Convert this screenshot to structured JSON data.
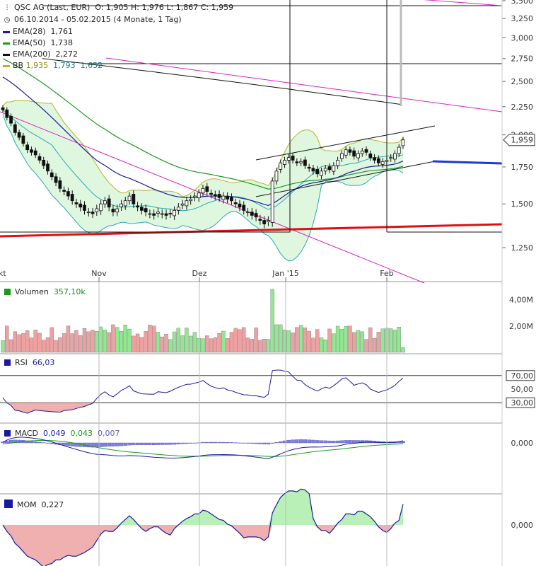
{
  "header": {
    "title": "QSC AG (Last, EUR)",
    "ohlc": "O: 1,905  H: 1,976  L: 1,867  C: 1,959",
    "period": "06.10.2014 - 05.02.2015 (4 Monate, 1 Tag)",
    "current_price": "1,959"
  },
  "legend": [
    {
      "label": "EMA(28)",
      "value": "1,761",
      "color": "#1a1aa0"
    },
    {
      "label": "EMA(50)",
      "value": "1,738",
      "color": "#1a9a1a"
    },
    {
      "label": "EMA(200)",
      "value": "2,272",
      "color": "#111111"
    },
    {
      "label": "BB",
      "value": "1,935",
      "value2": "1,793",
      "value3": "1,652",
      "color": "#b5b52a",
      "color2": "#2aa8b5"
    }
  ],
  "x_labels": [
    "kt",
    "Nov",
    "Dez",
    "Jan '15",
    "Feb"
  ],
  "price_ticks": [
    "3,500",
    "3,250",
    "3,000",
    "2,750",
    "2,500",
    "2,250",
    "2,000",
    "1,750",
    "1,500",
    "1,250"
  ],
  "volume": {
    "label": "Volumen",
    "value": "357,10k",
    "ticks": [
      "4,00M",
      "2,00M"
    ]
  },
  "rsi": {
    "label": "RSI",
    "value": "66,03",
    "ticks": [
      "70,00",
      "50,00",
      "30,00"
    ]
  },
  "macd": {
    "label": "MACD",
    "value": "0,049",
    "value2": "0,043",
    "value3": "0,007",
    "tick": "0,000"
  },
  "mom": {
    "label": "MOM",
    "value": "0,227",
    "tick": "0,000"
  },
  "colors": {
    "up": "#ffffff",
    "down": "#111111",
    "bb_fill": "#dff7df",
    "ema200_sup": "#dd1111",
    "trend": "#e020c0",
    "vol_up": "#90e890",
    "vol_down": "#f0a0a0",
    "macd_hist": "#8080e0",
    "mom_pos": "#b8f0b8",
    "mom_neg": "#f0b0b0",
    "target": "#1a3ad0"
  },
  "chart_data": [
    {
      "type": "candlestick",
      "title": "QSC AG (Last, EUR)",
      "x_range": [
        "2014-10-06",
        "2015-02-05"
      ],
      "ylim": [
        1.15,
        3.55
      ],
      "y_scale": "log",
      "close_series": [
        2.22,
        2.15,
        2.1,
        2.02,
        1.98,
        1.93,
        1.88,
        1.86,
        1.84,
        1.8,
        1.76,
        1.72,
        1.68,
        1.64,
        1.6,
        1.58,
        1.55,
        1.52,
        1.5,
        1.48,
        1.46,
        1.45,
        1.44,
        1.47,
        1.5,
        1.52,
        1.48,
        1.45,
        1.47,
        1.5,
        1.52,
        1.55,
        1.5,
        1.48,
        1.46,
        1.45,
        1.44,
        1.43,
        1.45,
        1.44,
        1.43,
        1.44,
        1.46,
        1.48,
        1.5,
        1.52,
        1.53,
        1.55,
        1.57,
        1.6,
        1.58,
        1.56,
        1.55,
        1.54,
        1.55,
        1.53,
        1.52,
        1.5,
        1.48,
        1.46,
        1.45,
        1.43,
        1.42,
        1.4,
        1.38,
        1.4,
        1.65,
        1.72,
        1.78,
        1.8,
        1.82,
        1.8,
        1.78,
        1.79,
        1.76,
        1.74,
        1.72,
        1.7,
        1.72,
        1.74,
        1.73,
        1.76,
        1.8,
        1.85,
        1.88,
        1.86,
        1.83,
        1.85,
        1.87,
        1.86,
        1.82,
        1.8,
        1.78,
        1.79,
        1.8,
        1.82,
        1.85,
        1.9,
        1.959
      ],
      "indicators": {
        "EMA(28)": 1.761,
        "EMA(50)": 1.738,
        "EMA(200)": 2.272,
        "BB": [
          1.935,
          1.793,
          1.652
        ]
      }
    },
    {
      "type": "bar",
      "title": "Volumen",
      "last": "357,10k",
      "ylim": [
        0,
        5000000
      ]
    },
    {
      "type": "line",
      "title": "RSI",
      "last": 66.03,
      "levels": [
        70,
        30
      ]
    },
    {
      "type": "line",
      "title": "MACD",
      "last": [
        0.049,
        0.043,
        0.007
      ]
    },
    {
      "type": "area",
      "title": "MOM",
      "last": 0.227
    }
  ]
}
